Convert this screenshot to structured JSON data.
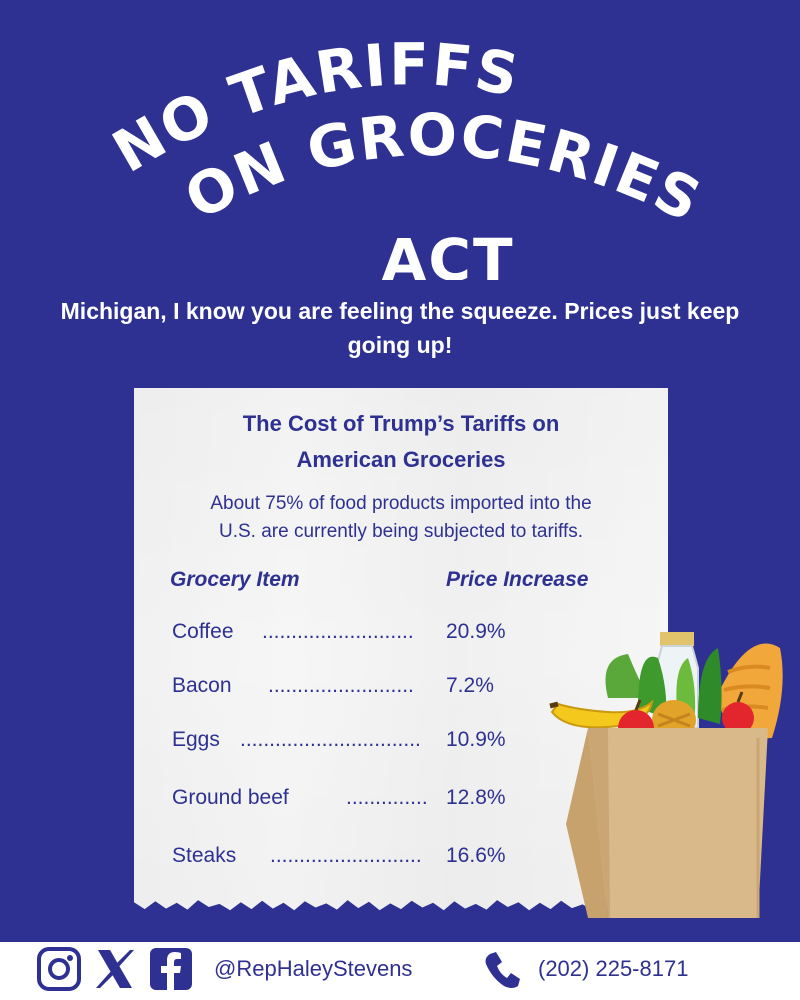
{
  "title": {
    "line1": "NO TARIFFS",
    "line2": "ON GROCERIES",
    "line3": "ACT"
  },
  "subtitle": "Michigan, I know you are feeling the squeeze. Prices just keep going up!",
  "card": {
    "title_line1": "The Cost of Trump’s Tariffs on",
    "title_line2": "American Groceries",
    "desc_line1": "About 75% of food products imported into the",
    "desc_line2": "U.S. are currently being subjected to tariffs.",
    "col_item": "Grocery Item",
    "col_price": "Price Increase",
    "rows": [
      {
        "item": "Coffee",
        "increase": "20.9%"
      },
      {
        "item": "Bacon",
        "increase": "7.2%"
      },
      {
        "item": "Eggs",
        "increase": "10.9%"
      },
      {
        "item": "Ground beef",
        "increase": "12.8%"
      },
      {
        "item": "Steaks",
        "increase": "16.6%"
      }
    ]
  },
  "footer": {
    "social_icons": [
      "instagram-icon",
      "x-icon",
      "facebook-icon"
    ],
    "handle": "@RepHaleyStevens",
    "phone": "(202) 225-8171"
  },
  "colors": {
    "background": "#2e3192",
    "paper": "#f6f6f6",
    "text_on_dark": "#ffffff"
  }
}
